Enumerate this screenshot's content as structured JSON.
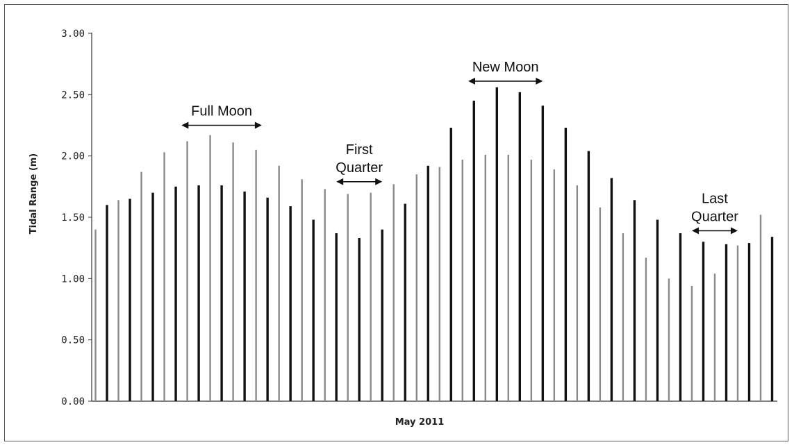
{
  "chart_data": {
    "type": "bar",
    "xlabel": "May 2011",
    "ylabel": "Tidal Range (m)",
    "ylim": [
      0,
      3
    ],
    "yticks": [
      "0.00",
      "0.50",
      "1.00",
      "1.50",
      "2.00",
      "2.50",
      "3.00"
    ],
    "grid": false,
    "colors": {
      "dark": "#111111",
      "light": "#8a8a8a"
    },
    "series": [
      {
        "values": [
          1.4,
          1.6,
          1.64,
          1.65,
          1.87,
          1.7,
          2.03,
          1.75,
          2.12,
          1.76,
          2.17,
          1.76,
          2.11,
          1.71,
          2.05,
          1.66,
          1.92,
          1.59,
          1.81,
          1.48,
          1.73,
          1.37,
          1.69,
          1.33,
          1.7,
          1.4,
          1.77,
          1.61,
          1.85,
          1.92,
          1.91,
          2.23,
          1.97,
          2.45,
          2.01,
          2.56,
          2.01,
          2.52,
          1.97,
          2.41,
          1.89,
          2.23,
          1.76,
          2.04,
          1.58,
          1.82,
          1.37,
          1.64,
          1.17,
          1.48,
          1.0,
          1.37,
          0.94,
          1.3,
          1.04,
          1.28,
          1.27,
          1.29,
          1.52,
          1.34
        ]
      }
    ],
    "annotations": [
      {
        "lines": [
          "Full Moon"
        ],
        "x_start": 7.5,
        "x_end": 14.5,
        "y": 2.25
      },
      {
        "lines": [
          "First",
          "Quarter"
        ],
        "x_start": 21.0,
        "x_end": 25.0,
        "y": 1.79
      },
      {
        "lines": [
          "New Moon"
        ],
        "x_start": 32.5,
        "x_end": 39.0,
        "y": 2.61
      },
      {
        "lines": [
          "Last",
          "Quarter"
        ],
        "x_start": 52.0,
        "x_end": 56.0,
        "y": 1.39
      }
    ]
  }
}
